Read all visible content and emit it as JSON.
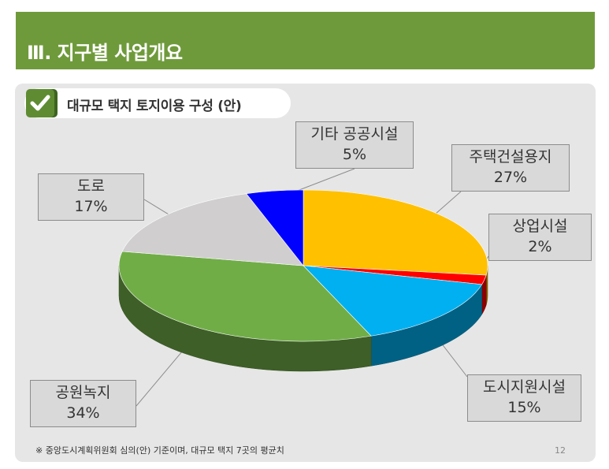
{
  "header": {
    "title": "Ⅲ. 지구별 사업개요"
  },
  "subtitle": "대규모 택지 토지이용 구성 (안)",
  "chart_data": {
    "type": "pie",
    "style": "3d",
    "title": "",
    "slices": [
      {
        "name": "주택건설용지",
        "value": 27,
        "label": "27%",
        "color": "#ffc000"
      },
      {
        "name": "상업시설",
        "value": 2,
        "label": "2%",
        "color": "#ff0000"
      },
      {
        "name": "도시지원시설",
        "value": 15,
        "label": "15%",
        "color": "#00b0f0"
      },
      {
        "name": "공원녹지",
        "value": 34,
        "label": "34%",
        "color": "#70ad47"
      },
      {
        "name": "도로",
        "value": 17,
        "label": "17%",
        "color": "#d0cece"
      },
      {
        "name": "기타 공공시설",
        "value": 5,
        "label": "5%",
        "color": "#0000ff"
      }
    ]
  },
  "footnote": "※ 중앙도시계획위원회 심의(안) 기준이며, 대규모 택지 7곳의 평균치",
  "page_number": "12"
}
